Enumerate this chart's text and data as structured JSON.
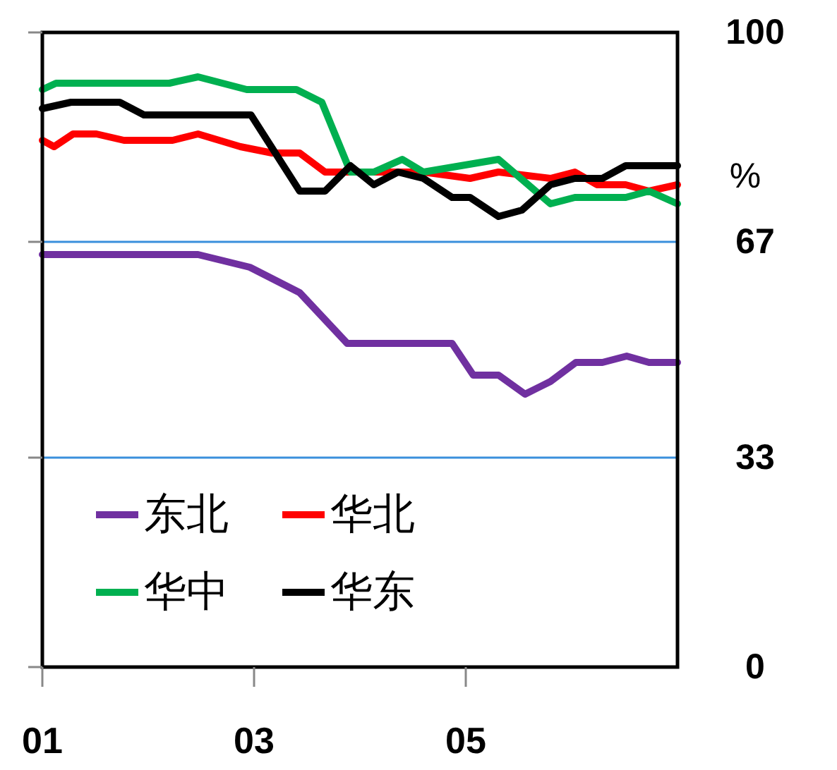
{
  "chart_data": {
    "type": "line",
    "ylabel": "%",
    "xlim": [
      1,
      7
    ],
    "xticks": [
      {
        "value": 1,
        "label": "01"
      },
      {
        "value": 3,
        "label": "03"
      },
      {
        "value": 5,
        "label": "05"
      }
    ],
    "ylim": [
      0,
      100
    ],
    "yticks": [
      0,
      33,
      67,
      100
    ],
    "grid": "y",
    "legend": "bottom left",
    "series": [
      {
        "name": "东北",
        "color": "#7030a0",
        "x": [
          1,
          2.47,
          2.96,
          3.43,
          3.88,
          4.87,
          5.07,
          5.31,
          5.56,
          5.8,
          6.04,
          6.29,
          6.52,
          6.73,
          7
        ],
        "values": [
          65,
          65,
          63,
          59,
          51,
          51,
          46,
          46,
          43,
          45,
          48,
          48,
          49,
          48,
          48
        ]
      },
      {
        "name": "华北",
        "color": "#ff0000",
        "x": [
          1,
          1.11,
          1.29,
          1.51,
          1.77,
          2.23,
          2.47,
          2.87,
          3.17,
          3.43,
          3.67,
          4.33,
          4.6,
          5.04,
          5.31,
          5.8,
          6.03,
          6.24,
          6.51,
          6.73,
          7
        ],
        "values": [
          83,
          82,
          84,
          84,
          83,
          83,
          84,
          82,
          81,
          81,
          78,
          78,
          78,
          77,
          78,
          77,
          78,
          76,
          76,
          75,
          76
        ]
      },
      {
        "name": "华中",
        "color": "#00b050",
        "x": [
          1,
          1.13,
          2.2,
          2.47,
          2.93,
          3.4,
          3.64,
          3.91,
          4.13,
          4.4,
          4.6,
          5.31,
          5.8,
          6.03,
          6.51,
          6.73,
          7
        ],
        "values": [
          91,
          92,
          92,
          93,
          91,
          91,
          89,
          78,
          78,
          80,
          78,
          80,
          73,
          74,
          74,
          75,
          73
        ]
      },
      {
        "name": "华东",
        "color": "#000000",
        "x": [
          1,
          1.27,
          1.73,
          1.96,
          2.97,
          3.43,
          3.67,
          3.91,
          4.13,
          4.36,
          4.6,
          4.87,
          5.04,
          5.31,
          5.53,
          5.8,
          6.03,
          6.29,
          6.51,
          7
        ],
        "values": [
          88,
          89,
          89,
          87,
          87,
          75,
          75,
          79,
          76,
          78,
          77,
          74,
          74,
          71,
          72,
          76,
          77,
          77,
          79,
          79
        ]
      }
    ]
  }
}
